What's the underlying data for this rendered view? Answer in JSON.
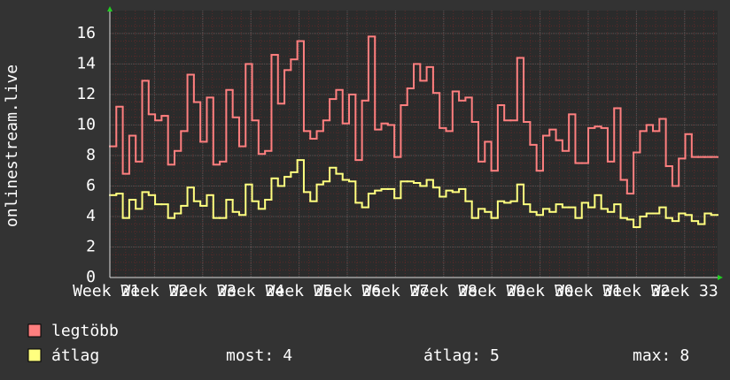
{
  "chart_data": {
    "type": "step",
    "ylabel": "onlinestream.live",
    "ylim": [
      0,
      17.5
    ],
    "yticks": [
      0,
      2,
      4,
      6,
      8,
      10,
      12,
      14,
      16
    ],
    "grid": true,
    "xtick_labels": [
      "Week 21",
      "Week 22",
      "Week 23",
      "Week 24",
      "Week 25",
      "Week 26",
      "Week 27",
      "Week 28",
      "Week 29",
      "Week 30",
      "Week 31",
      "Week 32",
      "Week 33"
    ],
    "series": [
      {
        "name": "legtöbb",
        "color": "#ff7f7f",
        "values": [
          8.6,
          11.2,
          6.8,
          9.3,
          7.6,
          12.9,
          10.7,
          10.3,
          10.6,
          7.4,
          8.3,
          9.6,
          13.3,
          11.5,
          8.9,
          11.8,
          7.4,
          7.6,
          12.3,
          10.5,
          8.6,
          14.0,
          10.3,
          8.1,
          8.3,
          14.6,
          11.4,
          13.6,
          14.3,
          15.5,
          9.6,
          9.1,
          9.6,
          10.3,
          11.7,
          12.3,
          10.1,
          12.0,
          7.7,
          11.6,
          15.8,
          9.7,
          10.1,
          10.0,
          7.9,
          11.3,
          12.4,
          14.0,
          12.9,
          13.8,
          12.1,
          9.8,
          9.6,
          12.2,
          11.6,
          11.8,
          10.2,
          7.6,
          8.9,
          7.0,
          11.3,
          10.3,
          10.3,
          14.4,
          10.2,
          8.7,
          7.0,
          9.3,
          9.7,
          9.0,
          8.3,
          10.7,
          7.5,
          7.5,
          9.8,
          9.9,
          9.8,
          7.6,
          11.1,
          6.4,
          5.5,
          8.2,
          9.6,
          10.0,
          9.6,
          10.4,
          7.3,
          6.0,
          7.8,
          9.4,
          7.9,
          7.9,
          7.9,
          7.9
        ]
      },
      {
        "name": "átlag",
        "color": "#ffff7f",
        "values": [
          5.4,
          5.5,
          3.9,
          5.1,
          4.5,
          5.6,
          5.4,
          4.8,
          4.8,
          3.9,
          4.2,
          4.7,
          5.9,
          5.0,
          4.7,
          5.4,
          3.9,
          3.9,
          5.1,
          4.3,
          4.1,
          6.1,
          5.0,
          4.5,
          5.1,
          6.5,
          6.0,
          6.6,
          6.9,
          7.7,
          5.6,
          5.0,
          6.1,
          6.3,
          7.2,
          6.8,
          6.4,
          6.3,
          4.9,
          4.6,
          5.5,
          5.7,
          5.8,
          5.8,
          5.2,
          6.3,
          6.3,
          6.2,
          6.0,
          6.4,
          5.9,
          5.3,
          5.7,
          5.6,
          5.8,
          5.0,
          3.9,
          4.5,
          4.3,
          3.9,
          5.0,
          4.9,
          5.0,
          6.1,
          4.8,
          4.3,
          4.1,
          4.5,
          4.3,
          4.8,
          4.6,
          4.6,
          3.9,
          4.9,
          4.6,
          5.4,
          4.5,
          4.3,
          4.8,
          3.9,
          3.8,
          3.3,
          4.0,
          4.2,
          4.2,
          4.6,
          3.9,
          3.7,
          4.2,
          4.1,
          3.7,
          3.5,
          4.2,
          4.1
        ]
      }
    ],
    "stats": [
      {
        "label": "most:",
        "value": 4
      },
      {
        "label": "átlag:",
        "value": 5
      },
      {
        "label": "max:",
        "value": 8
      }
    ]
  }
}
